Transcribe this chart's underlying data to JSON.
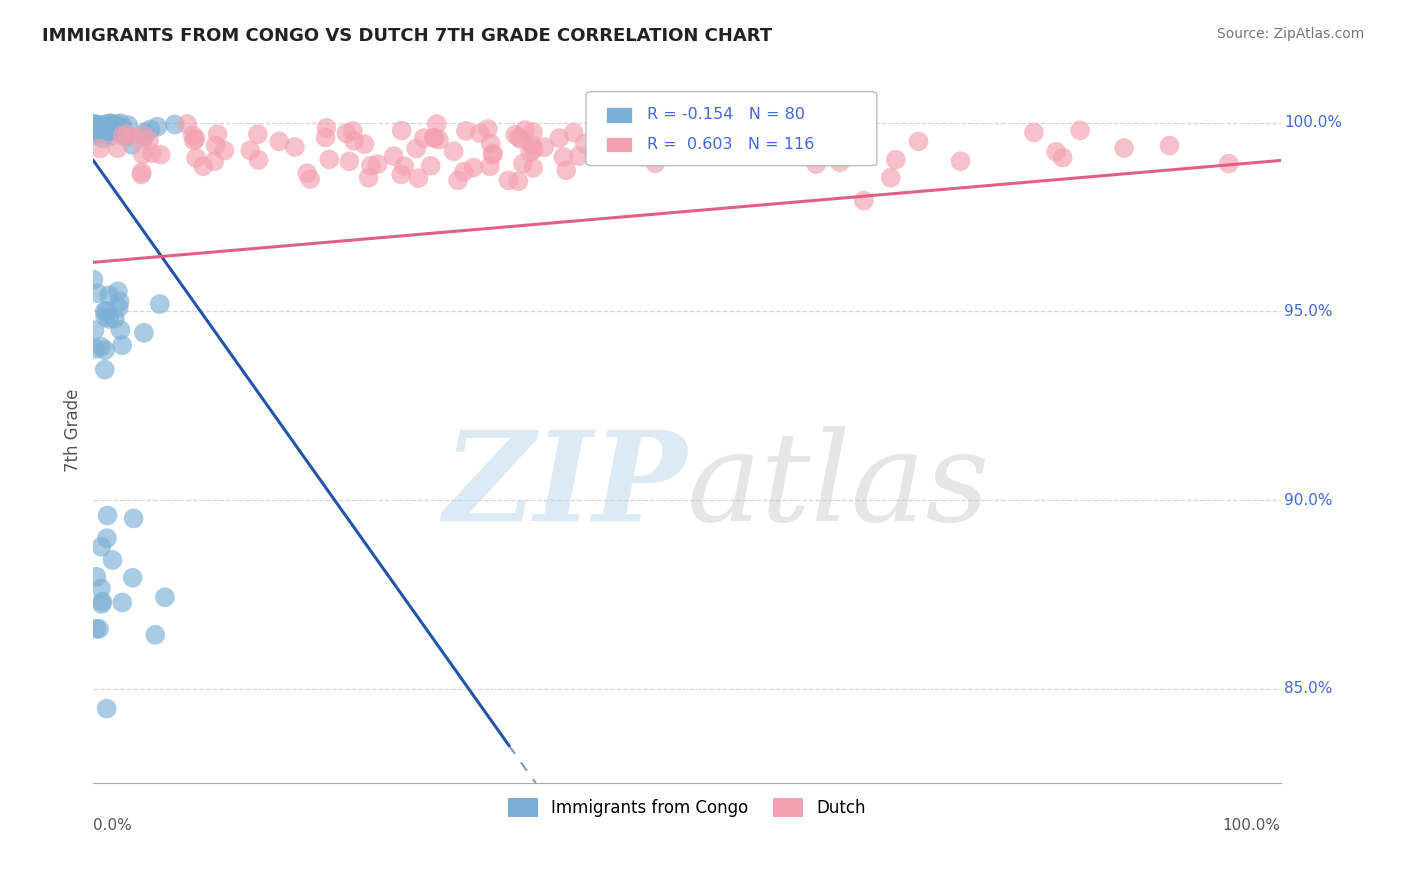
{
  "title": "IMMIGRANTS FROM CONGO VS DUTCH 7TH GRADE CORRELATION CHART",
  "source": "Source: ZipAtlas.com",
  "ylabel": "7th Grade",
  "xlim": [
    0.0,
    1.0
  ],
  "ylim": [
    0.825,
    1.012
  ],
  "congo_R": -0.154,
  "congo_N": 80,
  "dutch_R": 0.603,
  "dutch_N": 116,
  "congo_color": "#7BAFD4",
  "dutch_color": "#F4A0B0",
  "congo_line_color": "#2255AA",
  "dutch_line_color": "#E06080",
  "legend_label_congo": "Immigrants from Congo",
  "legend_label_dutch": "Dutch",
  "watermark_zip_color": "#C5DCF0",
  "watermark_atlas_color": "#C8C8C8",
  "background_color": "#FFFFFF",
  "grid_color": "#CCCCCC",
  "title_color": "#222222",
  "right_label_color": "#4169E1",
  "source_color": "#777777",
  "ytick_positions": [
    0.85,
    0.9,
    0.95,
    1.0
  ],
  "ytick_labels": [
    "85.0%",
    "90.0%",
    "95.0%",
    "100.0%"
  ]
}
